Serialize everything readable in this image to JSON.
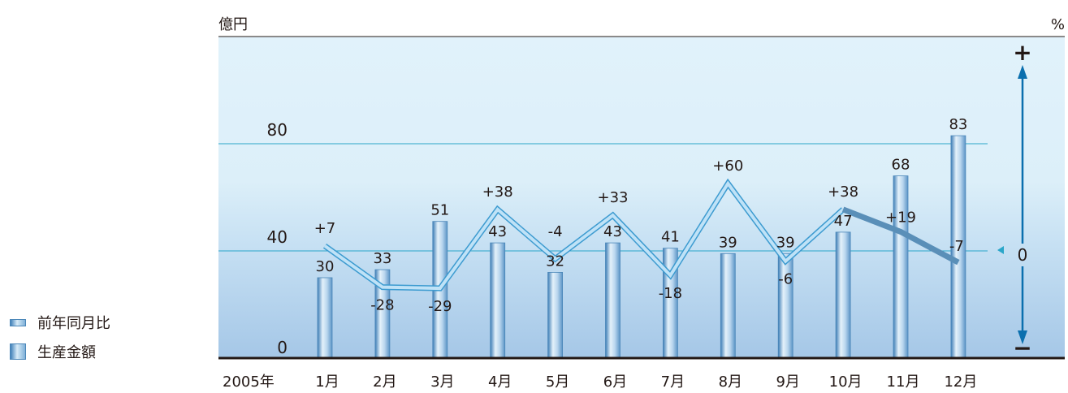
{
  "chart_data": {
    "type": "bar",
    "title": "",
    "left_unit": "億円",
    "right_unit": "%",
    "categories_prefix": "2005年",
    "categories": [
      "1月",
      "2月",
      "3月",
      "4月",
      "5月",
      "6月",
      "7月",
      "8月",
      "9月",
      "10月",
      "11月",
      "12月"
    ],
    "ylim": [
      0,
      100
    ],
    "yticks": [
      "0",
      "40",
      "80"
    ],
    "grid": true,
    "series": [
      {
        "name": "生産金額",
        "type": "bar",
        "values": [
          30,
          33,
          51,
          43,
          32,
          43,
          41,
          39,
          39,
          47,
          68,
          83
        ],
        "labels": [
          "30",
          "33",
          "51",
          "43",
          "32",
          "43",
          "41",
          "39",
          "39",
          "47",
          "68",
          "83"
        ]
      },
      {
        "name": "前年同月比",
        "type": "line",
        "values": [
          7,
          -28,
          -29,
          38,
          -4,
          33,
          -18,
          60,
          -6,
          38,
          19,
          -7
        ],
        "labels": [
          "+7",
          "-28",
          "-29",
          "+38",
          "-4",
          "+33",
          "-18",
          "+60",
          "-6",
          "+38",
          "+19",
          "-7"
        ]
      }
    ],
    "right_axis": {
      "plus": "+",
      "zero": "0",
      "minus": "−"
    },
    "legend": [
      "前年同月比",
      "生産金額"
    ],
    "legend_position": "left",
    "colors": {
      "bar": "#8ab8df",
      "line_light": "#bfe2f7",
      "line_dark": "#5a8fb8",
      "arrow": "#0a6fae",
      "grid": "#2aa6c9",
      "bg_top": "#e0f1fa",
      "bg_bottom": "#a6c9e8"
    }
  }
}
